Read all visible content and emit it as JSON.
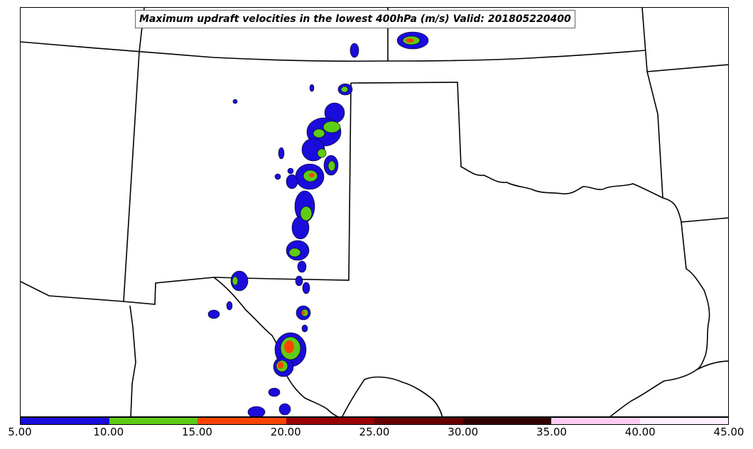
{
  "title": "Maximum updraft velocities in the lowest 400hPa (m/s) Valid: 201805220400",
  "colorbar": {
    "ticks": [
      "5.00",
      "10.00",
      "15.00",
      "20.00",
      "25.00",
      "30.00",
      "35.00",
      "40.00",
      "45.00"
    ],
    "colors": [
      "#1a0ddc",
      "#5ecc14",
      "#ff4400",
      "#990000",
      "#660000",
      "#330000",
      "#ffccf2",
      "#ffeeff"
    ]
  },
  "levels_colors": {
    "blue": "#1a0ddc",
    "green": "#5ecc14",
    "orange": "#ff4400"
  }
}
